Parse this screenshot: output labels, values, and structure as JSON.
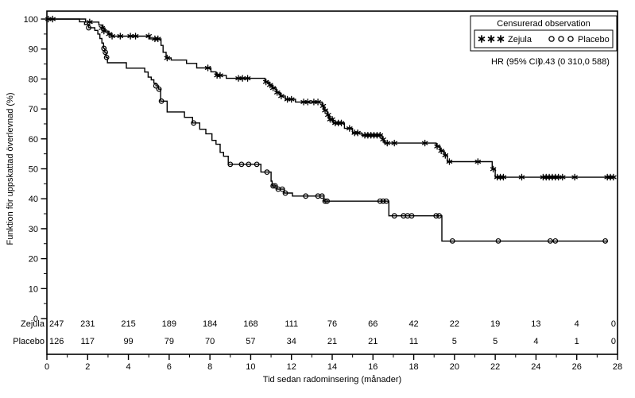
{
  "chart_data": {
    "type": "line",
    "subtype": "kaplan-meier-step",
    "title": "",
    "xlabel": "Tid sedan radominsering (månader)",
    "ylabel": "Funktion för uppskattad överlevnad (%)",
    "xlim": [
      0,
      28
    ],
    "ylim": [
      0,
      100
    ],
    "x_major_ticks": [
      0,
      2,
      4,
      6,
      8,
      10,
      12,
      14,
      16,
      18,
      20,
      22,
      24,
      26,
      28
    ],
    "x_minor_ticks": [
      1,
      3,
      5,
      7,
      9,
      11,
      13,
      15,
      17,
      19,
      21,
      23,
      25,
      27
    ],
    "y_major_ticks": [
      0,
      10,
      20,
      30,
      40,
      50,
      60,
      70,
      80,
      90,
      100
    ],
    "y_minor_ticks": [
      5,
      15,
      25,
      35,
      45,
      55,
      65,
      75,
      85,
      95
    ],
    "grid": false,
    "line_color": "#000000",
    "legend": {
      "position": "top-right",
      "title": "Censurerad observation",
      "entries": [
        {
          "label": "Zejula",
          "marker": "asterisk"
        },
        {
          "label": "Placebo",
          "marker": "circle"
        }
      ]
    },
    "annotation": {
      "label": "HR (95% CI)",
      "value": "0.43 (0 310,0 588)"
    },
    "series": [
      {
        "name": "Zejula",
        "marker": "asterisk",
        "steps": [
          [
            0,
            100
          ],
          [
            1.9,
            100
          ],
          [
            1.9,
            99
          ],
          [
            2.55,
            99
          ],
          [
            2.55,
            98
          ],
          [
            2.75,
            98
          ],
          [
            2.75,
            97
          ],
          [
            2.85,
            97
          ],
          [
            2.85,
            96
          ],
          [
            3.0,
            96
          ],
          [
            3.0,
            95
          ],
          [
            3.15,
            95
          ],
          [
            3.15,
            94.3
          ],
          [
            5.05,
            94.3
          ],
          [
            5.05,
            93.4
          ],
          [
            5.6,
            93.4
          ],
          [
            5.6,
            91.2
          ],
          [
            5.7,
            91.2
          ],
          [
            5.7,
            88.9
          ],
          [
            5.85,
            88.9
          ],
          [
            5.85,
            87
          ],
          [
            6.1,
            87
          ],
          [
            6.1,
            86.3
          ],
          [
            6.85,
            86.3
          ],
          [
            6.85,
            85.2
          ],
          [
            7.35,
            85.2
          ],
          [
            7.35,
            83.7
          ],
          [
            8.05,
            83.7
          ],
          [
            8.05,
            82.4
          ],
          [
            8.3,
            82.4
          ],
          [
            8.3,
            81.2
          ],
          [
            8.8,
            81.2
          ],
          [
            8.8,
            80.2
          ],
          [
            10.7,
            80.2
          ],
          [
            10.7,
            79
          ],
          [
            10.9,
            79
          ],
          [
            10.9,
            78
          ],
          [
            11.05,
            78
          ],
          [
            11.05,
            77
          ],
          [
            11.25,
            77
          ],
          [
            11.25,
            75.5
          ],
          [
            11.45,
            75.5
          ],
          [
            11.45,
            74.3
          ],
          [
            11.7,
            74.3
          ],
          [
            11.7,
            73.2
          ],
          [
            12.2,
            73.2
          ],
          [
            12.2,
            72.3
          ],
          [
            13.5,
            72.3
          ],
          [
            13.5,
            71
          ],
          [
            13.6,
            71
          ],
          [
            13.6,
            69.5
          ],
          [
            13.75,
            69.5
          ],
          [
            13.75,
            68
          ],
          [
            13.85,
            68
          ],
          [
            13.85,
            66.5
          ],
          [
            14.05,
            66.5
          ],
          [
            14.05,
            65.3
          ],
          [
            14.6,
            65.3
          ],
          [
            14.6,
            63.5
          ],
          [
            15.0,
            63.5
          ],
          [
            15.0,
            62
          ],
          [
            15.45,
            62
          ],
          [
            15.45,
            61.2
          ],
          [
            16.45,
            61.2
          ],
          [
            16.45,
            59.8
          ],
          [
            16.55,
            59.8
          ],
          [
            16.55,
            58.6
          ],
          [
            19.1,
            58.6
          ],
          [
            19.1,
            57.5
          ],
          [
            19.3,
            57.5
          ],
          [
            19.3,
            56
          ],
          [
            19.5,
            56
          ],
          [
            19.5,
            54.5
          ],
          [
            19.65,
            54.5
          ],
          [
            19.65,
            52.4
          ],
          [
            21.85,
            52.4
          ],
          [
            21.85,
            49.9
          ],
          [
            22.0,
            49.9
          ],
          [
            22.0,
            47.2
          ],
          [
            27.9,
            47.2
          ]
        ],
        "censors": [
          [
            0.07,
            100
          ],
          [
            0.28,
            100
          ],
          [
            2.1,
            99
          ],
          [
            2.7,
            97
          ],
          [
            2.8,
            96
          ],
          [
            3.05,
            95
          ],
          [
            3.2,
            94.3
          ],
          [
            3.6,
            94.3
          ],
          [
            4.1,
            94.3
          ],
          [
            4.35,
            94.3
          ],
          [
            5.0,
            94.3
          ],
          [
            5.3,
            93.4
          ],
          [
            5.45,
            93.4
          ],
          [
            5.9,
            87
          ],
          [
            7.9,
            83.7
          ],
          [
            8.35,
            81.2
          ],
          [
            8.5,
            81.2
          ],
          [
            9.4,
            80.2
          ],
          [
            9.6,
            80.2
          ],
          [
            9.85,
            80.2
          ],
          [
            10.75,
            79
          ],
          [
            10.95,
            78
          ],
          [
            11.1,
            77
          ],
          [
            11.3,
            75.5
          ],
          [
            11.5,
            74.3
          ],
          [
            11.8,
            73.2
          ],
          [
            12.0,
            73.2
          ],
          [
            12.6,
            72.3
          ],
          [
            12.8,
            72.3
          ],
          [
            13.1,
            72.3
          ],
          [
            13.3,
            72.3
          ],
          [
            13.55,
            71
          ],
          [
            13.65,
            69.5
          ],
          [
            13.8,
            68
          ],
          [
            13.9,
            66.5
          ],
          [
            14.0,
            66.5
          ],
          [
            14.15,
            65.3
          ],
          [
            14.3,
            65.3
          ],
          [
            14.45,
            65.3
          ],
          [
            14.85,
            63.5
          ],
          [
            15.1,
            62
          ],
          [
            15.25,
            62
          ],
          [
            15.6,
            61.2
          ],
          [
            15.75,
            61.2
          ],
          [
            15.9,
            61.2
          ],
          [
            16.05,
            61.2
          ],
          [
            16.2,
            61.2
          ],
          [
            16.35,
            61.2
          ],
          [
            16.5,
            59.8
          ],
          [
            16.7,
            58.6
          ],
          [
            17.05,
            58.6
          ],
          [
            18.55,
            58.6
          ],
          [
            19.15,
            57.5
          ],
          [
            19.35,
            56
          ],
          [
            19.55,
            54.5
          ],
          [
            19.75,
            52.4
          ],
          [
            21.15,
            52.4
          ],
          [
            21.9,
            49.9
          ],
          [
            22.1,
            47.2
          ],
          [
            22.25,
            47.2
          ],
          [
            22.4,
            47.2
          ],
          [
            23.3,
            47.2
          ],
          [
            24.35,
            47.2
          ],
          [
            24.5,
            47.2
          ],
          [
            24.65,
            47.2
          ],
          [
            24.8,
            47.2
          ],
          [
            24.95,
            47.2
          ],
          [
            25.1,
            47.2
          ],
          [
            25.3,
            47.2
          ],
          [
            25.9,
            47.2
          ],
          [
            27.5,
            47.2
          ],
          [
            27.65,
            47.2
          ],
          [
            27.8,
            47.2
          ]
        ]
      },
      {
        "name": "Placebo",
        "marker": "circle",
        "steps": [
          [
            0,
            100
          ],
          [
            1.6,
            100
          ],
          [
            1.6,
            99.1
          ],
          [
            1.85,
            99.1
          ],
          [
            1.85,
            98.2
          ],
          [
            2.05,
            98.2
          ],
          [
            2.05,
            97.1
          ],
          [
            2.35,
            97.1
          ],
          [
            2.35,
            96.2
          ],
          [
            2.5,
            96.2
          ],
          [
            2.5,
            95
          ],
          [
            2.6,
            95
          ],
          [
            2.6,
            93.5
          ],
          [
            2.7,
            93.5
          ],
          [
            2.7,
            92
          ],
          [
            2.78,
            92
          ],
          [
            2.78,
            90.2
          ],
          [
            2.84,
            90.2
          ],
          [
            2.84,
            88.9
          ],
          [
            2.9,
            88.9
          ],
          [
            2.9,
            87.2
          ],
          [
            2.97,
            87.2
          ],
          [
            2.97,
            85.4
          ],
          [
            3.9,
            85.4
          ],
          [
            3.9,
            83.6
          ],
          [
            4.8,
            83.6
          ],
          [
            4.8,
            82.3
          ],
          [
            4.97,
            82.3
          ],
          [
            4.97,
            80.6
          ],
          [
            5.12,
            80.6
          ],
          [
            5.12,
            79.7
          ],
          [
            5.25,
            79.7
          ],
          [
            5.25,
            78.6
          ],
          [
            5.35,
            78.6
          ],
          [
            5.35,
            77.7
          ],
          [
            5.48,
            77.7
          ],
          [
            5.48,
            76.6
          ],
          [
            5.58,
            76.6
          ],
          [
            5.58,
            72.6
          ],
          [
            5.9,
            72.6
          ],
          [
            5.9,
            69.0
          ],
          [
            6.75,
            69.0
          ],
          [
            6.75,
            67.2
          ],
          [
            7.15,
            67.2
          ],
          [
            7.15,
            65.3
          ],
          [
            7.5,
            65.3
          ],
          [
            7.5,
            63.2
          ],
          [
            7.8,
            63.2
          ],
          [
            7.8,
            61.7
          ],
          [
            8.1,
            61.7
          ],
          [
            8.1,
            59.5
          ],
          [
            8.3,
            59.5
          ],
          [
            8.3,
            58.2
          ],
          [
            8.5,
            58.2
          ],
          [
            8.5,
            55.5
          ],
          [
            8.67,
            55.5
          ],
          [
            8.67,
            54.2
          ],
          [
            8.9,
            54.2
          ],
          [
            8.9,
            51.5
          ],
          [
            10.5,
            51.5
          ],
          [
            10.5,
            48.9
          ],
          [
            11.0,
            48.9
          ],
          [
            11.0,
            45.9
          ],
          [
            11.05,
            45.9
          ],
          [
            11.05,
            44.3
          ],
          [
            11.3,
            44.3
          ],
          [
            11.3,
            43.2
          ],
          [
            11.65,
            43.2
          ],
          [
            11.65,
            41.9
          ],
          [
            12.05,
            41.9
          ],
          [
            12.05,
            40.9
          ],
          [
            13.6,
            40.9
          ],
          [
            13.6,
            39.2
          ],
          [
            16.78,
            39.2
          ],
          [
            16.78,
            34.3
          ],
          [
            19.38,
            34.3
          ],
          [
            19.38,
            25.9
          ],
          [
            27.5,
            25.9
          ]
        ],
        "censors": [
          [
            2.05,
            97.1
          ],
          [
            2.8,
            90.2
          ],
          [
            2.87,
            88.9
          ],
          [
            2.93,
            87.2
          ],
          [
            5.35,
            77.7
          ],
          [
            5.5,
            76.6
          ],
          [
            5.62,
            72.6
          ],
          [
            7.2,
            65.3
          ],
          [
            9.0,
            51.5
          ],
          [
            9.55,
            51.5
          ],
          [
            9.9,
            51.5
          ],
          [
            10.3,
            51.5
          ],
          [
            10.8,
            48.9
          ],
          [
            11.1,
            44.3
          ],
          [
            11.2,
            44.3
          ],
          [
            11.35,
            43.2
          ],
          [
            11.55,
            43.2
          ],
          [
            11.7,
            41.9
          ],
          [
            12.7,
            40.9
          ],
          [
            13.3,
            40.9
          ],
          [
            13.5,
            40.9
          ],
          [
            13.65,
            39.2
          ],
          [
            13.75,
            39.2
          ],
          [
            16.35,
            39.2
          ],
          [
            16.5,
            39.2
          ],
          [
            16.65,
            39.2
          ],
          [
            17.05,
            34.3
          ],
          [
            17.5,
            34.3
          ],
          [
            17.7,
            34.3
          ],
          [
            17.9,
            34.3
          ],
          [
            19.1,
            34.3
          ],
          [
            19.25,
            34.3
          ],
          [
            19.9,
            25.9
          ],
          [
            22.15,
            25.9
          ],
          [
            24.7,
            25.9
          ],
          [
            24.95,
            25.9
          ],
          [
            27.4,
            25.9
          ]
        ]
      }
    ],
    "risk_table": {
      "times": [
        0,
        2,
        4,
        6,
        8,
        10,
        12,
        14,
        16,
        18,
        20,
        22,
        24,
        26,
        28
      ],
      "rows": [
        {
          "label": "Zejula",
          "values": [
            247,
            231,
            215,
            189,
            184,
            168,
            111,
            76,
            66,
            42,
            22,
            19,
            13,
            4,
            0
          ]
        },
        {
          "label": "Placebo",
          "values": [
            126,
            117,
            99,
            79,
            70,
            57,
            34,
            21,
            21,
            11,
            5,
            5,
            4,
            1,
            0
          ]
        }
      ]
    }
  }
}
